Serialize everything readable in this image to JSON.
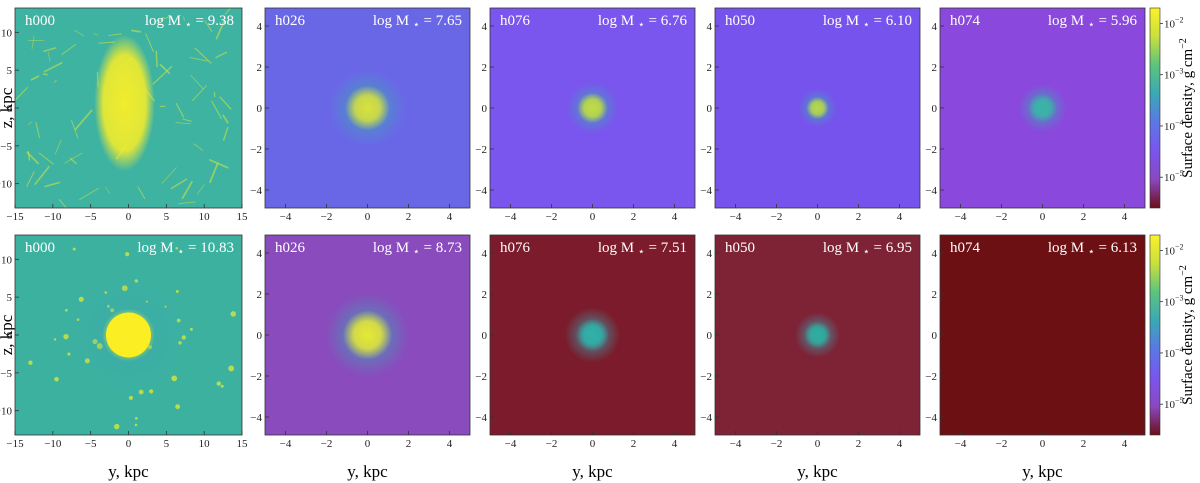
{
  "chart_data": {
    "type": "heatmap",
    "rows": [
      {
        "ylabel": "z, kpc",
        "xlabel": "y, kpc",
        "panels": [
          {
            "halo": "h000",
            "mass": "9.38",
            "background": "#3fb3a2",
            "blob_color": "#f1ec2d",
            "blob_radius": 5,
            "extent": 15,
            "style": "filament",
            "ticks": [
              "−15",
              "−10",
              "−5",
              "0",
              "5",
              "10",
              "15"
            ],
            "tick_values": [
              -15,
              -10,
              -5,
              0,
              5,
              10,
              15
            ]
          },
          {
            "halo": "h026",
            "mass": "7.65",
            "background": "#6a67e7",
            "blob_color": "#d9e23a",
            "blob_radius": 1.1,
            "extent": 5,
            "style": "blob",
            "ticks": [
              "−4",
              "−2",
              "0",
              "2",
              "4"
            ],
            "tick_values": [
              -4,
              -2,
              0,
              2,
              4
            ]
          },
          {
            "halo": "h076",
            "mass": "6.76",
            "background": "#7a55ee",
            "blob_color": "#c2dd42",
            "blob_radius": 0.75,
            "extent": 5,
            "style": "blob",
            "ticks": [
              "−4",
              "−2",
              "0",
              "2",
              "4"
            ],
            "tick_values": [
              -4,
              -2,
              0,
              2,
              4
            ]
          },
          {
            "halo": "h050",
            "mass": "6.10",
            "background": "#7753ed",
            "blob_color": "#b7d849",
            "blob_radius": 0.55,
            "extent": 5,
            "style": "blob",
            "ticks": [
              "−4",
              "−2",
              "0",
              "2",
              "4"
            ],
            "tick_values": [
              -4,
              -2,
              0,
              2,
              4
            ]
          },
          {
            "halo": "h074",
            "mass": "5.96",
            "background": "#8a48dd",
            "blob_color": "#3bb4a6",
            "blob_radius": 0.7,
            "extent": 5,
            "style": "blob",
            "ticks": [
              "−4",
              "−2",
              "0",
              "2",
              "4"
            ],
            "tick_values": [
              -4,
              -2,
              0,
              2,
              4
            ]
          }
        ]
      },
      {
        "ylabel": "z, kpc",
        "xlabel": "y, kpc",
        "panels": [
          {
            "halo": "h000",
            "mass": "10.83",
            "background": "#3cb1a0",
            "blob_color": "#fbee23",
            "blob_radius": 3.5,
            "extent": 15,
            "style": "sphere",
            "ticks": [
              "−15",
              "−10",
              "−5",
              "0",
              "5",
              "10",
              "15"
            ],
            "tick_values": [
              -15,
              -10,
              -5,
              0,
              5,
              10,
              15
            ]
          },
          {
            "halo": "h026",
            "mass": "8.73",
            "background": "#8a4bbd",
            "blob_color": "#e8e834",
            "blob_radius": 1.2,
            "extent": 5,
            "style": "blob",
            "ticks": [
              "−4",
              "−2",
              "0",
              "2",
              "4"
            ],
            "tick_values": [
              -4,
              -2,
              0,
              2,
              4
            ]
          },
          {
            "halo": "h076",
            "mass": "7.51",
            "background": "#7b1b2b",
            "blob_color": "#2fb1aa",
            "blob_radius": 0.8,
            "extent": 5,
            "style": "blob",
            "ticks": [
              "−4",
              "−2",
              "0",
              "2",
              "4"
            ],
            "tick_values": [
              -4,
              -2,
              0,
              2,
              4
            ]
          },
          {
            "halo": "h050",
            "mass": "6.95",
            "background": "#7e2236",
            "blob_color": "#2eae9f",
            "blob_radius": 0.65,
            "extent": 5,
            "style": "blob",
            "ticks": [
              "−4",
              "−2",
              "0",
              "2",
              "4"
            ],
            "tick_values": [
              -4,
              -2,
              0,
              2,
              4
            ]
          },
          {
            "halo": "h074",
            "mass": "6.13",
            "background": "#6d1014",
            "blob_color": "#6d1014",
            "blob_radius": 0,
            "extent": 5,
            "style": "empty",
            "ticks": [
              "−4",
              "−2",
              "0",
              "2",
              "4"
            ],
            "tick_values": [
              -4,
              -2,
              0,
              2,
              4
            ]
          }
        ]
      }
    ],
    "colorbar": {
      "label": "Surface density, g cm",
      "label_exponent": "−2",
      "ticks": [
        {
          "mantissa": "10",
          "exponent": "−2",
          "value": -2
        },
        {
          "mantissa": "10",
          "exponent": "−3",
          "value": -3
        },
        {
          "mantissa": "10",
          "exponent": "−4",
          "value": -4
        },
        {
          "mantissa": "10",
          "exponent": "−5",
          "value": -5
        }
      ],
      "log_range": [
        -5.6,
        -1.7
      ],
      "colors": [
        "#6b0f1a",
        "#8a48c0",
        "#7a55ee",
        "#5a78e6",
        "#3aa8b6",
        "#5cc47e",
        "#c8e03c",
        "#fcf12a"
      ]
    },
    "mass_label_prefix": "log M",
    "mass_label_star": "⋆"
  }
}
